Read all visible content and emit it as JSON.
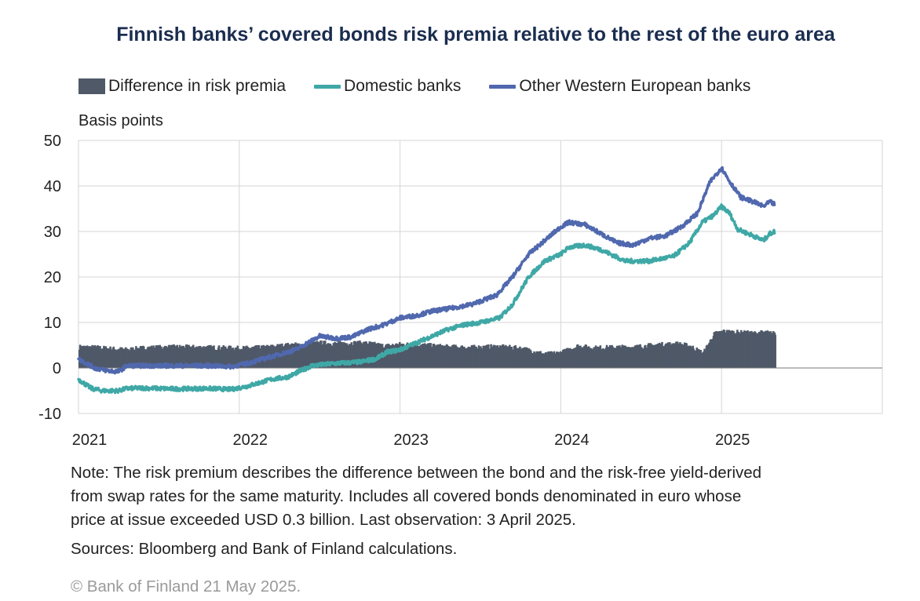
{
  "chart_data": {
    "type": "line",
    "title": "Finnish banks’ covered bonds risk premia relative to the rest of the euro area",
    "ylabel": "Basis points",
    "xlabel": "",
    "ylim": [
      -10,
      50
    ],
    "yticks": [
      -10,
      0,
      10,
      20,
      30,
      40,
      50
    ],
    "xlim": [
      2021.0,
      2026.0
    ],
    "xticks": [
      2021,
      2022,
      2023,
      2024,
      2025
    ],
    "xtick_labels": [
      "2021",
      "2022",
      "2023",
      "2024",
      "2025"
    ],
    "grid": true,
    "legend_position": "top",
    "series": [
      {
        "name": "Difference in risk premia",
        "kind": "bar",
        "color": "#4f5968",
        "x": [
          2021.0,
          2021.1,
          2021.2,
          2021.3,
          2021.4,
          2021.6,
          2021.8,
          2022.0,
          2022.15,
          2022.3,
          2022.42,
          2022.5,
          2022.6,
          2022.7,
          2022.8,
          2022.9,
          2023.0,
          2023.15,
          2023.3,
          2023.45,
          2023.6,
          2023.75,
          2023.9,
          2024.0,
          2024.1,
          2024.2,
          2024.3,
          2024.45,
          2024.6,
          2024.72,
          2024.8,
          2024.88,
          2024.95,
          2025.0,
          2025.1,
          2025.2,
          2025.26,
          2025.33
        ],
        "values": [
          4.6,
          4.5,
          4.2,
          4.0,
          4.4,
          4.6,
          4.5,
          4.3,
          4.5,
          5.0,
          5.2,
          5.5,
          5.3,
          5.5,
          5.4,
          4.8,
          5.2,
          5.0,
          4.6,
          4.5,
          4.7,
          4.3,
          3.0,
          3.4,
          4.8,
          4.4,
          4.5,
          4.6,
          5.1,
          5.3,
          4.8,
          3.2,
          7.5,
          8.0,
          7.8,
          7.6,
          7.8,
          7.5
        ]
      },
      {
        "name": "Domestic banks",
        "kind": "line",
        "color": "#3fa8a6",
        "x": [
          2021.0,
          2021.08,
          2021.15,
          2021.25,
          2021.3,
          2021.4,
          2021.6,
          2021.8,
          2021.95,
          2022.05,
          2022.2,
          2022.3,
          2022.45,
          2022.6,
          2022.75,
          2022.85,
          2022.92,
          2023.0,
          2023.1,
          2023.2,
          2023.3,
          2023.4,
          2023.5,
          2023.62,
          2023.7,
          2023.8,
          2023.9,
          2024.0,
          2024.05,
          2024.15,
          2024.25,
          2024.4,
          2024.55,
          2024.7,
          2024.8,
          2024.88,
          2024.95,
          2025.0,
          2025.05,
          2025.1,
          2025.2,
          2025.26,
          2025.3,
          2025.33
        ],
        "values": [
          -2.5,
          -4.5,
          -5.0,
          -5.0,
          -4.5,
          -4.4,
          -4.6,
          -4.5,
          -4.7,
          -4.0,
          -2.5,
          -2.0,
          0.5,
          1.0,
          1.3,
          2.0,
          3.5,
          4.0,
          5.5,
          7.0,
          8.5,
          9.5,
          10.0,
          11.0,
          14.0,
          20.0,
          23.5,
          25.0,
          26.5,
          27.0,
          26.0,
          23.5,
          23.5,
          24.5,
          27.5,
          32.0,
          33.5,
          35.5,
          34.0,
          30.5,
          29.0,
          28.0,
          29.5,
          30.0
        ]
      },
      {
        "name": "Other Western European banks",
        "kind": "line",
        "color": "#5068ae",
        "x": [
          2021.0,
          2021.1,
          2021.18,
          2021.25,
          2021.3,
          2021.4,
          2021.6,
          2021.8,
          2021.95,
          2022.05,
          2022.2,
          2022.35,
          2022.5,
          2022.6,
          2022.7,
          2022.8,
          2022.9,
          2023.0,
          2023.1,
          2023.2,
          2023.3,
          2023.45,
          2023.6,
          2023.7,
          2023.8,
          2023.9,
          2024.0,
          2024.05,
          2024.15,
          2024.25,
          2024.35,
          2024.45,
          2024.55,
          2024.65,
          2024.75,
          2024.85,
          2024.93,
          2025.0,
          2025.05,
          2025.12,
          2025.2,
          2025.26,
          2025.3,
          2025.33
        ],
        "values": [
          2.0,
          0.0,
          -0.6,
          -0.8,
          0.5,
          0.5,
          0.5,
          0.5,
          0.3,
          1.0,
          2.5,
          4.0,
          7.0,
          6.5,
          6.8,
          8.5,
          9.5,
          11.0,
          11.5,
          12.5,
          13.0,
          14.0,
          16.0,
          20.0,
          25.0,
          28.0,
          31.0,
          32.0,
          31.5,
          29.5,
          27.5,
          27.0,
          28.5,
          29.0,
          31.0,
          34.0,
          41.0,
          44.0,
          41.0,
          37.5,
          36.5,
          35.5,
          36.5,
          36.0
        ]
      }
    ]
  },
  "notes": {
    "line1": "Note: The risk premium describes the difference between the bond and the risk-free yield-derived",
    "line2": "from swap rates for the same maturity. Includes all covered bonds denominated in euro whose",
    "line3": "price at issue exceeded USD 0.3 billion. Last observation: 3 April 2025.",
    "source": "Sources: Bloomberg and Bank of Finland calculations.",
    "copyright": "© Bank of Finland 21 May 2025."
  }
}
